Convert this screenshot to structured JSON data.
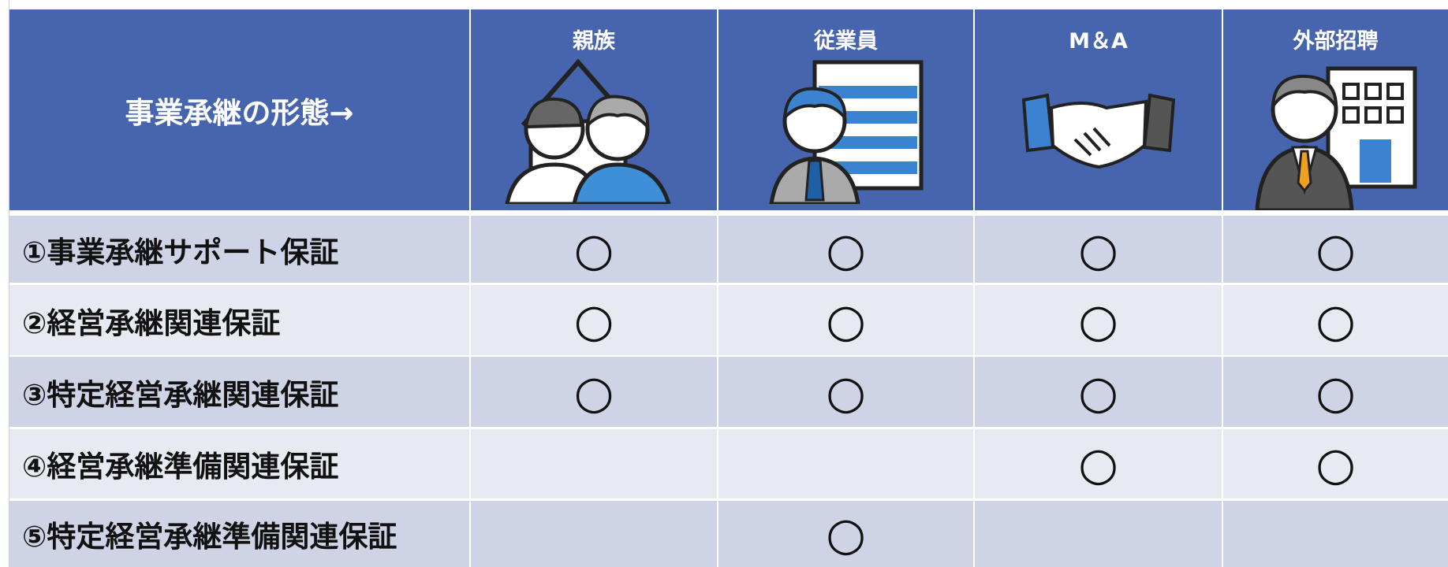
{
  "table": {
    "header": [
      "事業承継の形態→",
      "親族",
      "従業員",
      "M＆A",
      "外部招聘"
    ],
    "rows": [
      {
        "label": "①事業承継サポート保証",
        "cells": [
          "○",
          "○",
          "○",
          "○"
        ]
      },
      {
        "label": "②経営承継関連保証",
        "cells": [
          "○",
          "○",
          "○",
          "○"
        ]
      },
      {
        "label": "③特定経営承継関連保証",
        "cells": [
          "○",
          "○",
          "○",
          "○"
        ]
      },
      {
        "label": "④経営承継準備関連保証",
        "cells": [
          null,
          null,
          "○",
          "○"
        ]
      },
      {
        "label": "⑤特定経営承継準備関連保証",
        "cells": [
          null,
          "○",
          null,
          null
        ]
      }
    ]
  }
}
